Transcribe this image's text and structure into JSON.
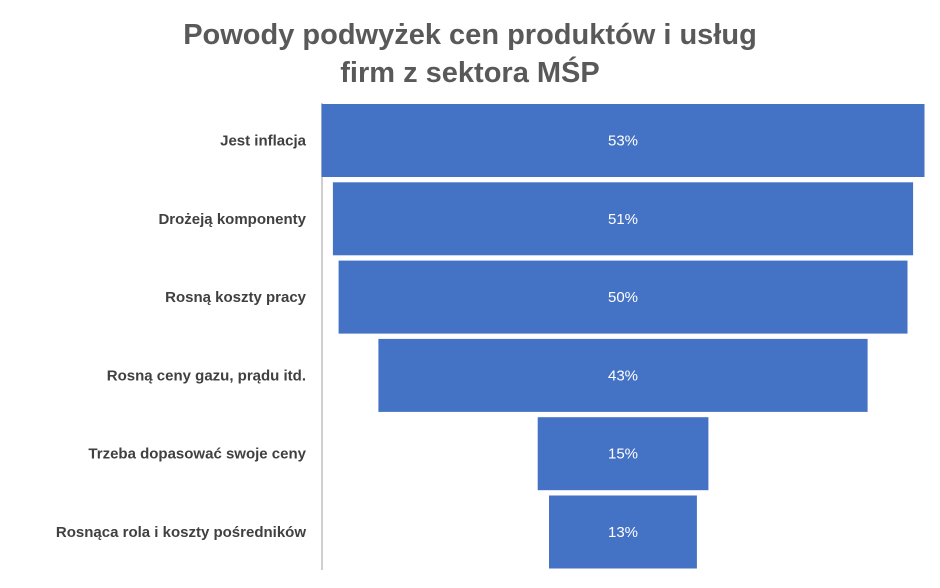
{
  "chart_data": {
    "type": "bar",
    "subtype": "funnel",
    "title": [
      "Powody podwyżek cen produktów i usług",
      "firm z sektora MŚP"
    ],
    "categories": [
      "Jest inflacja",
      "Drożeją komponenty",
      "Rosną koszty pracy",
      "Rosną ceny gazu, prądu itd.",
      "Trzeba dopasować swoje ceny",
      "Rosnąca rola i koszty pośredników"
    ],
    "values": [
      53,
      51,
      50,
      43,
      15,
      13
    ],
    "value_labels": [
      "53%",
      "51%",
      "50%",
      "43%",
      "15%",
      "13%"
    ],
    "unit": "%",
    "bar_color": "#4472C4",
    "axis_line": true,
    "grid": false,
    "legend": "none"
  }
}
